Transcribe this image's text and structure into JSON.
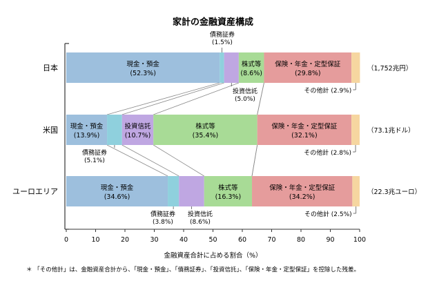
{
  "chart_data": {
    "type": "bar",
    "orientation": "horizontal",
    "stacked": true,
    "title": "家計の金融資産構成",
    "xlabel": "金融資産合計に占める割合（%）",
    "xlim": [
      0,
      100
    ],
    "ticks": [
      "0",
      "10",
      "20",
      "30",
      "40",
      "50",
      "60",
      "70",
      "80",
      "90",
      "100"
    ],
    "grid": false,
    "legend": "none",
    "categories": [
      "日本",
      "米国",
      "ユーロエリア"
    ],
    "totals": [
      "（1,752兆円）",
      "（73.1兆ドル）",
      "（22.3兆ユーロ）"
    ],
    "series": [
      {
        "name": "現金・預金",
        "color": "#9dbfdd",
        "values": [
          52.3,
          13.9,
          34.6
        ],
        "labels": [
          "(52.3%)",
          "(13.9%)",
          "(34.6%)"
        ]
      },
      {
        "name": "債務証券",
        "color": "#8fd0dd",
        "values": [
          1.5,
          5.1,
          3.8
        ],
        "labels": [
          "(1.5%)",
          "(5.1%)",
          "(3.8%)"
        ]
      },
      {
        "name": "投資信託",
        "color": "#bfa7e2",
        "values": [
          5.0,
          10.7,
          8.6
        ],
        "labels": [
          "(5.0%)",
          "(10.7%)",
          "(8.6%)"
        ]
      },
      {
        "name": "株式等",
        "color": "#a8db96",
        "values": [
          8.6,
          35.4,
          16.3
        ],
        "labels": [
          "(8.6%)",
          "(35.4%)",
          "(16.3%)"
        ]
      },
      {
        "name": "保険・年金・定型保証",
        "color": "#e59c9c",
        "values": [
          29.8,
          32.1,
          34.2
        ],
        "labels": [
          "(29.8%)",
          "(32.1%)",
          "(34.2%)"
        ]
      },
      {
        "name": "その他計",
        "color": "#f6d6a0",
        "values": [
          2.9,
          2.8,
          2.5
        ],
        "labels": [
          "(2.9%)",
          "(2.8%)",
          "(2.5%)"
        ]
      }
    ],
    "footnote": "＊ 「その他計」は、金融資産合計から、「現金・預金」、「債務証券」、「投資信託」、「保険・年金・定型保証」を控除した残差。"
  }
}
